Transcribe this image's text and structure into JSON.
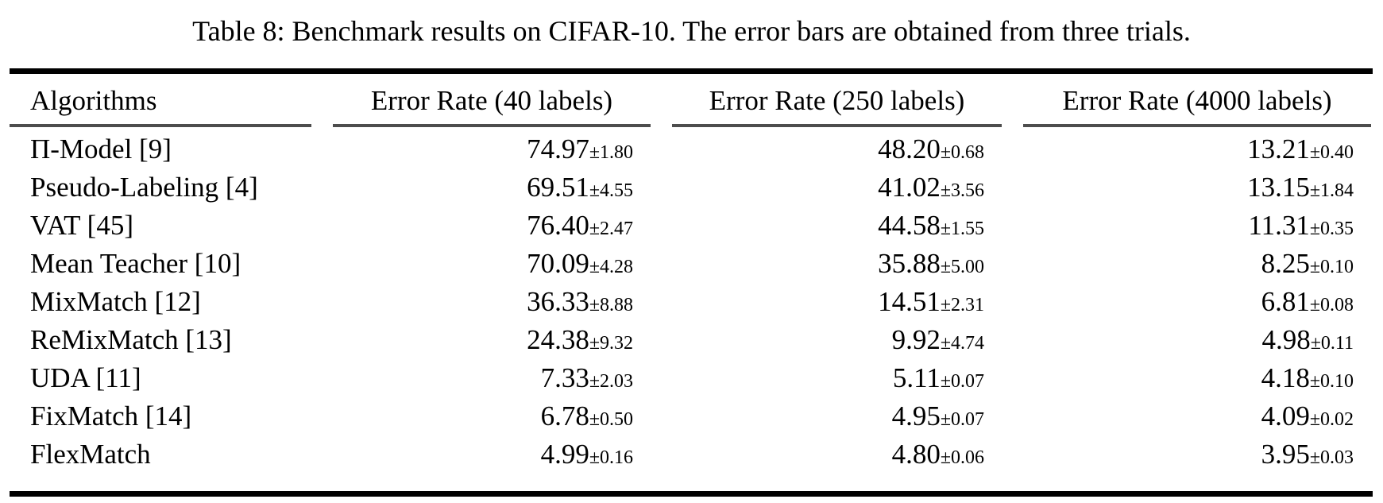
{
  "figure": {
    "caption": "Table 8: Benchmark results on CIFAR-10. The error bars are obtained from three trials."
  },
  "table": {
    "headers": [
      "Algorithms",
      "Error Rate (40 labels)",
      "Error Rate (250 labels)",
      "Error Rate (4000 labels)"
    ],
    "rows": [
      {
        "algorithm": "Π-Model [9]",
        "e40": "74.97",
        "e40_err": "±1.80",
        "e250": "48.20",
        "e250_err": "±0.68",
        "e4000": "13.21",
        "e4000_err": "±0.40"
      },
      {
        "algorithm": "Pseudo-Labeling [4]",
        "e40": "69.51",
        "e40_err": "±4.55",
        "e250": "41.02",
        "e250_err": "±3.56",
        "e4000": "13.15",
        "e4000_err": "±1.84"
      },
      {
        "algorithm": "VAT [45]",
        "e40": "76.40",
        "e40_err": "±2.47",
        "e250": "44.58",
        "e250_err": "±1.55",
        "e4000": "11.31",
        "e4000_err": "±0.35"
      },
      {
        "algorithm": "Mean Teacher [10]",
        "e40": "70.09",
        "e40_err": "±4.28",
        "e250": "35.88",
        "e250_err": "±5.00",
        "e4000": "8.25",
        "e4000_err": "±0.10"
      },
      {
        "algorithm": "MixMatch [12]",
        "e40": "36.33",
        "e40_err": "±8.88",
        "e250": "14.51",
        "e250_err": "±2.31",
        "e4000": "6.81",
        "e4000_err": "±0.08"
      },
      {
        "algorithm": "ReMixMatch [13]",
        "e40": "24.38",
        "e40_err": "±9.32",
        "e250": "9.92",
        "e250_err": "±4.74",
        "e4000": "4.98",
        "e4000_err": "±0.11"
      },
      {
        "algorithm": "UDA [11]",
        "e40": "7.33",
        "e40_err": "±2.03",
        "e250": "5.11",
        "e250_err": "±0.07",
        "e4000": "4.18",
        "e4000_err": "±0.10"
      },
      {
        "algorithm": "FixMatch [14]",
        "e40": "6.78",
        "e40_err": "±0.50",
        "e250": "4.95",
        "e250_err": "±0.07",
        "e4000": "4.09",
        "e4000_err": "±0.02"
      },
      {
        "algorithm": "FlexMatch",
        "e40": "4.99",
        "e40_err": "±0.16",
        "e250": "4.80",
        "e250_err": "±0.06",
        "e4000": "3.95",
        "e4000_err": "±0.03"
      }
    ]
  },
  "colors": {
    "background": "#ffffff",
    "text": "#000000",
    "rule_heavy": "#000000",
    "rule_light": "#4d4d4d"
  },
  "chart_data": {
    "type": "table",
    "title": "Table 8: Benchmark results on CIFAR-10. The error bars are obtained from three trials.",
    "columns": [
      "Algorithms",
      "Error Rate (40 labels)",
      "Error Rate (250 labels)",
      "Error Rate (4000 labels)"
    ],
    "categories": [
      "Π-Model [9]",
      "Pseudo-Labeling [4]",
      "VAT [45]",
      "Mean Teacher [10]",
      "MixMatch [12]",
      "ReMixMatch [13]",
      "UDA [11]",
      "FixMatch [14]",
      "FlexMatch"
    ],
    "series": [
      {
        "name": "Error Rate (40 labels)",
        "values": [
          74.97,
          69.51,
          76.4,
          70.09,
          36.33,
          24.38,
          7.33,
          6.78,
          4.99
        ],
        "errors": [
          1.8,
          4.55,
          2.47,
          4.28,
          8.88,
          9.32,
          2.03,
          0.5,
          0.16
        ]
      },
      {
        "name": "Error Rate (250 labels)",
        "values": [
          48.2,
          41.02,
          44.58,
          35.88,
          14.51,
          9.92,
          5.11,
          4.95,
          4.8
        ],
        "errors": [
          0.68,
          3.56,
          1.55,
          5.0,
          2.31,
          4.74,
          0.07,
          0.07,
          0.06
        ]
      },
      {
        "name": "Error Rate (4000 labels)",
        "values": [
          13.21,
          13.15,
          11.31,
          8.25,
          6.81,
          4.98,
          4.18,
          4.09,
          3.95
        ],
        "errors": [
          0.4,
          1.84,
          0.35,
          0.1,
          0.08,
          0.11,
          0.1,
          0.02,
          0.03
        ]
      }
    ]
  }
}
